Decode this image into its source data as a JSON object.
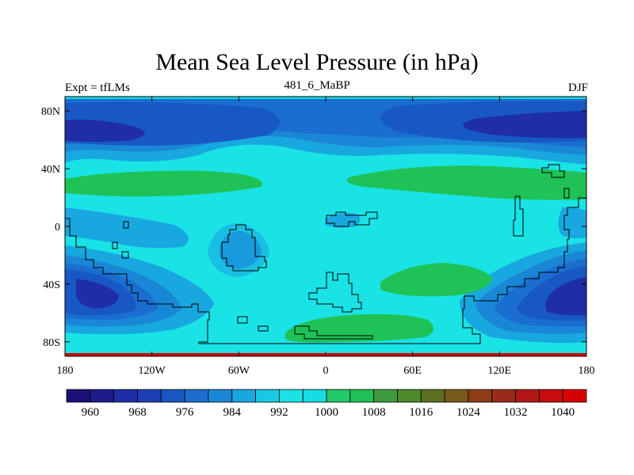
{
  "chart_data": {
    "type": "heatmap",
    "title": "Mean Sea Level Pressure (in hPa)",
    "left_label": "Expt = tfLMs",
    "center_label": "481_6_MaBP",
    "right_label": "DJF",
    "x_ticks": [
      "180",
      "120W",
      "60W",
      "0",
      "60E",
      "120E",
      "180"
    ],
    "x_tick_values": [
      -180,
      -120,
      -60,
      0,
      60,
      120,
      180
    ],
    "y_ticks": [
      "80N",
      "40N",
      "0",
      "40S",
      "80S"
    ],
    "y_tick_values": [
      80,
      40,
      0,
      -40,
      -80
    ],
    "xlim": [
      -180,
      180
    ],
    "ylim": [
      -90,
      90
    ],
    "colorbar_labels": [
      "960",
      "968",
      "976",
      "984",
      "992",
      "1000",
      "1008",
      "1016",
      "1024",
      "1032",
      "1040"
    ],
    "colorbar_levels": [
      960,
      964,
      968,
      972,
      976,
      980,
      984,
      988,
      992,
      996,
      1000,
      1004,
      1008,
      1012,
      1016,
      1020,
      1024,
      1028,
      1032,
      1036,
      1040
    ],
    "colorbar_colors": [
      "#1c1078",
      "#1e1b8c",
      "#1f2ea6",
      "#1d3fb5",
      "#1858c4",
      "#1a6ed0",
      "#1a87d6",
      "#19a7df",
      "#19c8e6",
      "#1ae3e6",
      "#18dce3",
      "#22c86a",
      "#1fc256",
      "#3f9a3c",
      "#4d8a2c",
      "#5d7020",
      "#7a5a1a",
      "#8e3c18",
      "#9a2a1a",
      "#b01818",
      "#c80c0c",
      "#d80000"
    ]
  }
}
